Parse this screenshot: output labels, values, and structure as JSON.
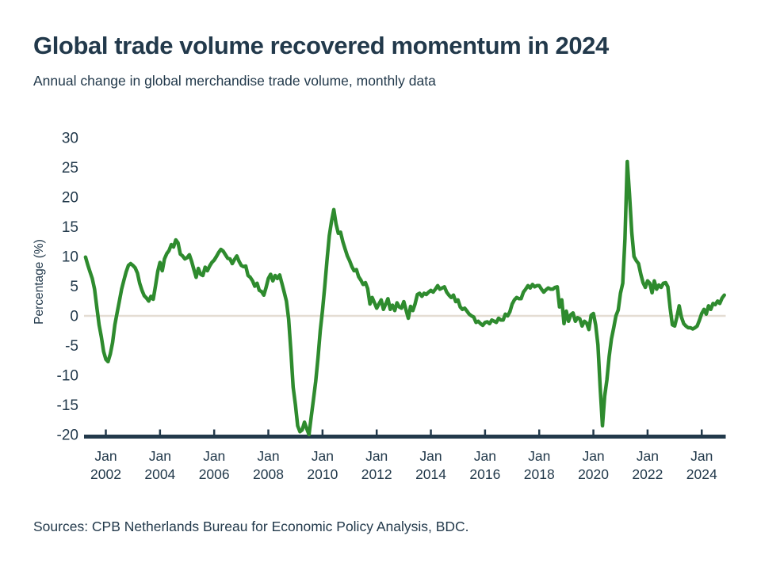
{
  "header": {
    "title": "Global trade volume recovered momentum in 2024",
    "subtitle": "Annual change in global merchandise trade volume, monthly data"
  },
  "footer": {
    "sources": "Sources: CPB Netherlands Bureau for Economic Policy Analysis, BDC."
  },
  "colors": {
    "line": "#2E8B2E",
    "text": "#22394B",
    "axis": "#22394B",
    "zero_line": "#E4DDD3",
    "background": "#FFFFFF"
  },
  "chart_data": {
    "type": "line",
    "title": "Global trade volume recovered momentum in 2024",
    "subtitle": "Annual change in global merchandise trade volume, monthly data",
    "ylabel": "Percentage (%)",
    "ylim": [
      -20,
      30
    ],
    "yticks": [
      30,
      25,
      20,
      15,
      10,
      5,
      0,
      -5,
      -10,
      -15,
      -20
    ],
    "xtick_month_label": "Jan",
    "xtick_years": [
      2002,
      2004,
      2006,
      2008,
      2010,
      2012,
      2014,
      2016,
      2018,
      2020,
      2022,
      2024
    ],
    "grid": "zero-line-only",
    "legend": "none",
    "series": [
      {
        "name": "Annual change in global merchandise trade volume (YoY %)",
        "frequency": "monthly",
        "start_month": "2001-04",
        "end_month": "2024-11",
        "values": [
          9.9,
          8.6,
          7.4,
          6.3,
          4.5,
          1.5,
          -1.5,
          -3.5,
          -6.0,
          -7.3,
          -7.7,
          -6.4,
          -4.5,
          -1.5,
          0.5,
          2.5,
          4.5,
          6.0,
          7.4,
          8.5,
          8.8,
          8.5,
          8.1,
          7.2,
          5.5,
          4.3,
          3.4,
          3.0,
          2.5,
          3.3,
          2.8,
          5.0,
          7.5,
          9.0,
          7.6,
          9.6,
          10.5,
          11.0,
          12.0,
          11.6,
          12.8,
          12.3,
          10.4,
          10.1,
          9.6,
          9.8,
          10.3,
          9.2,
          7.8,
          6.5,
          8.0,
          7.0,
          6.8,
          8.2,
          7.6,
          8.4,
          9.0,
          9.4,
          10.0,
          10.7,
          11.2,
          10.9,
          10.3,
          9.7,
          9.6,
          8.8,
          9.5,
          10.1,
          9.2,
          8.5,
          8.3,
          8.4,
          6.8,
          6.5,
          5.9,
          5.0,
          5.5,
          4.3,
          4.1,
          3.5,
          4.8,
          6.3,
          7.0,
          5.9,
          6.8,
          6.3,
          6.9,
          5.5,
          4.0,
          2.5,
          -0.5,
          -6.0,
          -12.0,
          -15.0,
          -18.5,
          -19.5,
          -19.2,
          -17.9,
          -19.0,
          -20.0,
          -17.0,
          -14.0,
          -11.0,
          -7.0,
          -2.5,
          1.0,
          5.0,
          9.5,
          13.5,
          16.0,
          17.9,
          15.5,
          13.9,
          14.1,
          12.5,
          11.3,
          10.1,
          9.3,
          8.3,
          7.6,
          7.8,
          6.6,
          6.0,
          5.3,
          5.6,
          4.6,
          2.0,
          3.1,
          2.2,
          1.3,
          2.0,
          2.7,
          1.1,
          2.0,
          2.9,
          1.1,
          1.8,
          0.9,
          2.2,
          1.5,
          1.3,
          2.4,
          1.0,
          -0.4,
          1.6,
          0.9,
          2.0,
          3.6,
          3.8,
          3.3,
          3.8,
          3.6,
          4.0,
          4.3,
          4.0,
          4.5,
          5.1,
          4.5,
          4.7,
          4.9,
          4.0,
          3.5,
          3.1,
          3.5,
          2.4,
          2.7,
          1.5,
          1.1,
          1.3,
          0.8,
          0.3,
          0.0,
          -0.2,
          -1.1,
          -0.9,
          -1.3,
          -1.6,
          -1.1,
          -1.0,
          -1.3,
          -0.7,
          -0.9,
          -1.1,
          -0.4,
          -0.7,
          -0.7,
          0.3,
          0.0,
          0.7,
          2.0,
          2.7,
          3.1,
          2.9,
          2.9,
          4.0,
          4.5,
          5.1,
          4.7,
          5.3,
          4.9,
          5.1,
          5.1,
          4.5,
          4.0,
          4.4,
          4.7,
          4.5,
          4.5,
          4.8,
          4.9,
          1.5,
          2.7,
          -1.3,
          0.8,
          -0.9,
          0.2,
          0.5,
          -0.9,
          -0.3,
          -0.5,
          -1.7,
          -0.9,
          -1.2,
          -2.3,
          0.1,
          0.4,
          -1.5,
          -4.9,
          -12.0,
          -18.5,
          -13.5,
          -10.8,
          -6.8,
          -3.9,
          -2.0,
          0.0,
          1.0,
          3.8,
          5.5,
          13.0,
          26.0,
          20.5,
          14.0,
          10.0,
          9.3,
          8.8,
          7.0,
          5.6,
          4.8,
          5.9,
          5.5,
          3.9,
          5.9,
          4.5,
          5.2,
          4.8,
          5.5,
          5.6,
          4.9,
          1.3,
          -1.5,
          -1.7,
          -0.2,
          1.7,
          -0.2,
          -1.3,
          -1.7,
          -2.0,
          -2.0,
          -2.2,
          -2.0,
          -1.7,
          -0.7,
          0.4,
          1.1,
          0.3,
          1.7,
          1.1,
          2.1,
          1.9,
          2.5,
          2.1,
          3.0,
          3.5
        ]
      }
    ]
  }
}
